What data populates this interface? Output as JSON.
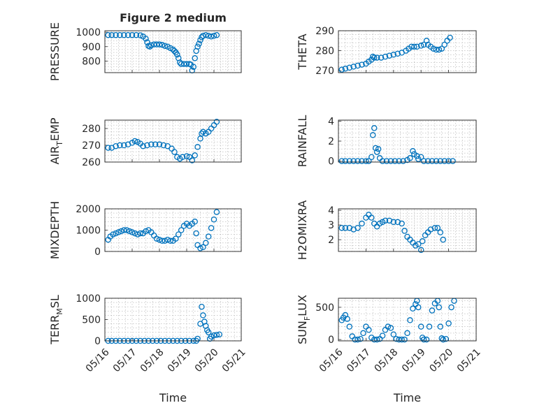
{
  "figure": {
    "title": "Figure 2 medium",
    "marker_color": "#0072bd",
    "xlabel": "Time",
    "xticks": [
      "05/16",
      "05/17",
      "05/18",
      "05/19",
      "05/20",
      "05/21"
    ]
  },
  "chart_data": [
    {
      "type": "scatter",
      "title": "Figure 2 medium",
      "ylabel": "PRESSURE",
      "xlim": [
        0,
        5
      ],
      "ylim": [
        720,
        1010
      ],
      "yticks": [
        800,
        900,
        1000
      ],
      "grid": true,
      "marker": "circle",
      "points": [
        [
          0.12,
          980
        ],
        [
          0.25,
          980
        ],
        [
          0.4,
          980
        ],
        [
          0.55,
          980
        ],
        [
          0.7,
          980
        ],
        [
          0.85,
          980
        ],
        [
          1.0,
          980
        ],
        [
          1.15,
          980
        ],
        [
          1.3,
          978
        ],
        [
          1.4,
          970
        ],
        [
          1.5,
          955
        ],
        [
          1.55,
          930
        ],
        [
          1.6,
          905
        ],
        [
          1.65,
          900
        ],
        [
          1.7,
          910
        ],
        [
          1.8,
          915
        ],
        [
          1.9,
          915
        ],
        [
          2.0,
          915
        ],
        [
          2.1,
          912
        ],
        [
          2.2,
          905
        ],
        [
          2.3,
          900
        ],
        [
          2.4,
          890
        ],
        [
          2.5,
          880
        ],
        [
          2.55,
          870
        ],
        [
          2.6,
          860
        ],
        [
          2.65,
          845
        ],
        [
          2.7,
          820
        ],
        [
          2.75,
          790
        ],
        [
          2.8,
          780
        ],
        [
          2.9,
          780
        ],
        [
          3.0,
          780
        ],
        [
          3.1,
          780
        ],
        [
          3.15,
          775
        ],
        [
          3.2,
          735
        ],
        [
          3.25,
          760
        ],
        [
          3.3,
          820
        ],
        [
          3.35,
          870
        ],
        [
          3.4,
          900
        ],
        [
          3.45,
          920
        ],
        [
          3.5,
          945
        ],
        [
          3.55,
          965
        ],
        [
          3.6,
          975
        ],
        [
          3.7,
          980
        ],
        [
          3.8,
          975
        ],
        [
          3.9,
          970
        ],
        [
          4.0,
          975
        ],
        [
          4.1,
          980
        ]
      ]
    },
    {
      "type": "scatter",
      "ylabel": "THETA",
      "xlim": [
        0,
        5
      ],
      "ylim": [
        269,
        290
      ],
      "yticks": [
        270,
        280,
        290
      ],
      "grid": true,
      "marker": "circle",
      "points": [
        [
          0.12,
          270.5
        ],
        [
          0.25,
          271
        ],
        [
          0.4,
          271.5
        ],
        [
          0.55,
          272
        ],
        [
          0.7,
          272.5
        ],
        [
          0.85,
          273
        ],
        [
          1.0,
          273.5
        ],
        [
          1.1,
          274.5
        ],
        [
          1.2,
          275.5
        ],
        [
          1.25,
          277
        ],
        [
          1.3,
          276.5
        ],
        [
          1.4,
          276.5
        ],
        [
          1.55,
          276.5
        ],
        [
          1.7,
          277
        ],
        [
          1.85,
          277.5
        ],
        [
          2.0,
          278
        ],
        [
          2.15,
          278.5
        ],
        [
          2.3,
          279
        ],
        [
          2.45,
          280
        ],
        [
          2.55,
          281
        ],
        [
          2.65,
          282
        ],
        [
          2.75,
          282
        ],
        [
          2.85,
          282
        ],
        [
          3.0,
          282.5
        ],
        [
          3.1,
          283
        ],
        [
          3.2,
          285
        ],
        [
          3.25,
          283
        ],
        [
          3.35,
          282
        ],
        [
          3.45,
          281
        ],
        [
          3.55,
          280.5
        ],
        [
          3.65,
          280.5
        ],
        [
          3.75,
          281
        ],
        [
          3.85,
          283
        ],
        [
          3.95,
          285
        ],
        [
          4.05,
          286.5
        ]
      ]
    },
    {
      "type": "scatter",
      "ylabel": "AIR_TEMP",
      "xlim": [
        0,
        5
      ],
      "ylim": [
        260,
        285
      ],
      "yticks": [
        260,
        270,
        280
      ],
      "grid": true,
      "marker": "circle",
      "points": [
        [
          0.12,
          268.5
        ],
        [
          0.25,
          268.5
        ],
        [
          0.4,
          269.5
        ],
        [
          0.55,
          270
        ],
        [
          0.7,
          270
        ],
        [
          0.85,
          270.5
        ],
        [
          1.0,
          271.5
        ],
        [
          1.1,
          272.5
        ],
        [
          1.2,
          272
        ],
        [
          1.3,
          271
        ],
        [
          1.4,
          269.5
        ],
        [
          1.55,
          270
        ],
        [
          1.7,
          270.5
        ],
        [
          1.85,
          270.5
        ],
        [
          2.0,
          270.5
        ],
        [
          2.15,
          270
        ],
        [
          2.3,
          269.5
        ],
        [
          2.45,
          268
        ],
        [
          2.55,
          266
        ],
        [
          2.65,
          263
        ],
        [
          2.75,
          262
        ],
        [
          2.85,
          263
        ],
        [
          3.0,
          263.5
        ],
        [
          3.1,
          263
        ],
        [
          3.2,
          261
        ],
        [
          3.3,
          264
        ],
        [
          3.4,
          269
        ],
        [
          3.5,
          274
        ],
        [
          3.55,
          277
        ],
        [
          3.6,
          278
        ],
        [
          3.7,
          277
        ],
        [
          3.8,
          278
        ],
        [
          3.9,
          280
        ],
        [
          4.0,
          282
        ],
        [
          4.1,
          284
        ]
      ]
    },
    {
      "type": "scatter",
      "ylabel": "RAINFALL",
      "xlim": [
        0,
        5
      ],
      "ylim": [
        -0.1,
        4.1
      ],
      "yticks": [
        0,
        2,
        4
      ],
      "grid": true,
      "marker": "circle",
      "points": [
        [
          0.12,
          0
        ],
        [
          0.25,
          0
        ],
        [
          0.4,
          0
        ],
        [
          0.55,
          0
        ],
        [
          0.7,
          0
        ],
        [
          0.85,
          0
        ],
        [
          1.0,
          0
        ],
        [
          1.1,
          0
        ],
        [
          1.2,
          0.4
        ],
        [
          1.25,
          2.6
        ],
        [
          1.3,
          3.3
        ],
        [
          1.35,
          1.3
        ],
        [
          1.4,
          0.9
        ],
        [
          1.45,
          1.2
        ],
        [
          1.5,
          0.3
        ],
        [
          1.6,
          0
        ],
        [
          1.75,
          0
        ],
        [
          1.9,
          0
        ],
        [
          2.05,
          0
        ],
        [
          2.2,
          0
        ],
        [
          2.35,
          0
        ],
        [
          2.5,
          0.1
        ],
        [
          2.6,
          0.3
        ],
        [
          2.7,
          1.0
        ],
        [
          2.75,
          0.7
        ],
        [
          2.85,
          0.5
        ],
        [
          2.9,
          0.2
        ],
        [
          3.0,
          0.4
        ],
        [
          3.1,
          0
        ],
        [
          3.25,
          0
        ],
        [
          3.4,
          0
        ],
        [
          3.55,
          0
        ],
        [
          3.7,
          0
        ],
        [
          3.85,
          0
        ],
        [
          4.0,
          0
        ],
        [
          4.15,
          0
        ]
      ]
    },
    {
      "type": "scatter",
      "ylabel": "MIXDEPTH",
      "xlim": [
        0,
        5
      ],
      "ylim": [
        0,
        2000
      ],
      "yticks": [
        0,
        1000,
        2000
      ],
      "grid": true,
      "marker": "circle",
      "points": [
        [
          0.12,
          550
        ],
        [
          0.2,
          700
        ],
        [
          0.3,
          800
        ],
        [
          0.4,
          850
        ],
        [
          0.5,
          900
        ],
        [
          0.6,
          950
        ],
        [
          0.7,
          1000
        ],
        [
          0.8,
          1000
        ],
        [
          0.9,
          950
        ],
        [
          1.0,
          900
        ],
        [
          1.1,
          850
        ],
        [
          1.2,
          800
        ],
        [
          1.3,
          850
        ],
        [
          1.4,
          850
        ],
        [
          1.5,
          950
        ],
        [
          1.6,
          1000
        ],
        [
          1.7,
          900
        ],
        [
          1.8,
          750
        ],
        [
          1.9,
          600
        ],
        [
          2.0,
          550
        ],
        [
          2.1,
          500
        ],
        [
          2.2,
          500
        ],
        [
          2.3,
          550
        ],
        [
          2.4,
          500
        ],
        [
          2.5,
          500
        ],
        [
          2.6,
          600
        ],
        [
          2.7,
          800
        ],
        [
          2.8,
          1000
        ],
        [
          2.9,
          1200
        ],
        [
          3.0,
          1300
        ],
        [
          3.1,
          1200
        ],
        [
          3.2,
          1300
        ],
        [
          3.3,
          1400
        ],
        [
          3.35,
          850
        ],
        [
          3.4,
          300
        ],
        [
          3.5,
          150
        ],
        [
          3.6,
          200
        ],
        [
          3.7,
          400
        ],
        [
          3.8,
          700
        ],
        [
          3.9,
          1100
        ],
        [
          4.0,
          1500
        ],
        [
          4.1,
          1850
        ]
      ]
    },
    {
      "type": "scatter",
      "ylabel": "H2OMIXRA",
      "xlim": [
        0,
        5
      ],
      "ylim": [
        1.2,
        4.1
      ],
      "yticks": [
        2,
        3,
        4
      ],
      "grid": true,
      "marker": "circle",
      "points": [
        [
          0.12,
          2.8
        ],
        [
          0.25,
          2.8
        ],
        [
          0.4,
          2.8
        ],
        [
          0.55,
          2.7
        ],
        [
          0.7,
          2.8
        ],
        [
          0.85,
          3.1
        ],
        [
          1.0,
          3.5
        ],
        [
          1.1,
          3.7
        ],
        [
          1.2,
          3.5
        ],
        [
          1.3,
          3.1
        ],
        [
          1.4,
          2.9
        ],
        [
          1.5,
          3.1
        ],
        [
          1.6,
          3.2
        ],
        [
          1.7,
          3.3
        ],
        [
          1.85,
          3.3
        ],
        [
          2.0,
          3.2
        ],
        [
          2.15,
          3.2
        ],
        [
          2.3,
          3.1
        ],
        [
          2.4,
          2.6
        ],
        [
          2.5,
          2.2
        ],
        [
          2.6,
          2.0
        ],
        [
          2.7,
          1.8
        ],
        [
          2.8,
          1.6
        ],
        [
          2.9,
          1.7
        ],
        [
          3.0,
          1.3
        ],
        [
          3.05,
          1.9
        ],
        [
          3.15,
          2.3
        ],
        [
          3.25,
          2.5
        ],
        [
          3.35,
          2.7
        ],
        [
          3.5,
          2.8
        ],
        [
          3.6,
          2.8
        ],
        [
          3.7,
          2.5
        ],
        [
          3.8,
          2.0
        ]
      ]
    },
    {
      "type": "scatter",
      "ylabel": "TERR_MSL",
      "xlim": [
        0,
        5
      ],
      "ylim": [
        0,
        1000
      ],
      "yticks": [
        0,
        500,
        1000
      ],
      "grid": true,
      "marker": "circle",
      "points": [
        [
          0.12,
          0
        ],
        [
          0.25,
          0
        ],
        [
          0.4,
          0
        ],
        [
          0.55,
          0
        ],
        [
          0.7,
          0
        ],
        [
          0.85,
          0
        ],
        [
          1.0,
          0
        ],
        [
          1.15,
          0
        ],
        [
          1.3,
          0
        ],
        [
          1.45,
          0
        ],
        [
          1.6,
          0
        ],
        [
          1.75,
          0
        ],
        [
          1.9,
          0
        ],
        [
          2.05,
          0
        ],
        [
          2.2,
          0
        ],
        [
          2.35,
          0
        ],
        [
          2.5,
          0
        ],
        [
          2.65,
          0
        ],
        [
          2.8,
          0
        ],
        [
          2.95,
          0
        ],
        [
          3.1,
          0
        ],
        [
          3.25,
          0
        ],
        [
          3.35,
          0
        ],
        [
          3.4,
          50
        ],
        [
          3.5,
          400
        ],
        [
          3.55,
          800
        ],
        [
          3.6,
          600
        ],
        [
          3.65,
          450
        ],
        [
          3.7,
          350
        ],
        [
          3.75,
          250
        ],
        [
          3.8,
          200
        ],
        [
          3.85,
          50
        ],
        [
          3.9,
          100
        ],
        [
          4.0,
          130
        ],
        [
          4.1,
          140
        ],
        [
          4.2,
          150
        ]
      ]
    },
    {
      "type": "scatter",
      "ylabel": "SUN_FLUX",
      "xlim": [
        0,
        5
      ],
      "ylim": [
        -20,
        640
      ],
      "yticks": [
        0,
        500
      ],
      "grid": true,
      "marker": "circle",
      "points": [
        [
          0.12,
          300
        ],
        [
          0.18,
          340
        ],
        [
          0.25,
          380
        ],
        [
          0.32,
          320
        ],
        [
          0.4,
          200
        ],
        [
          0.5,
          50
        ],
        [
          0.6,
          0
        ],
        [
          0.7,
          0
        ],
        [
          0.8,
          10
        ],
        [
          0.9,
          100
        ],
        [
          1.0,
          200
        ],
        [
          1.1,
          150
        ],
        [
          1.2,
          30
        ],
        [
          1.3,
          0
        ],
        [
          1.4,
          0
        ],
        [
          1.5,
          10
        ],
        [
          1.6,
          60
        ],
        [
          1.7,
          150
        ],
        [
          1.8,
          200
        ],
        [
          1.9,
          180
        ],
        [
          2.0,
          80
        ],
        [
          2.1,
          10
        ],
        [
          2.2,
          0
        ],
        [
          2.3,
          0
        ],
        [
          2.4,
          0
        ],
        [
          2.5,
          100
        ],
        [
          2.6,
          300
        ],
        [
          2.7,
          480
        ],
        [
          2.8,
          550
        ],
        [
          2.85,
          600
        ],
        [
          2.9,
          500
        ],
        [
          3.0,
          200
        ],
        [
          3.05,
          30
        ],
        [
          3.1,
          0
        ],
        [
          3.2,
          0
        ],
        [
          3.3,
          200
        ],
        [
          3.4,
          450
        ],
        [
          3.5,
          560
        ],
        [
          3.6,
          600
        ],
        [
          3.65,
          500
        ],
        [
          3.7,
          200
        ],
        [
          3.75,
          20
        ],
        [
          3.8,
          0
        ],
        [
          3.9,
          10
        ],
        [
          4.0,
          250
        ],
        [
          4.1,
          500
        ],
        [
          4.2,
          600
        ]
      ]
    }
  ]
}
